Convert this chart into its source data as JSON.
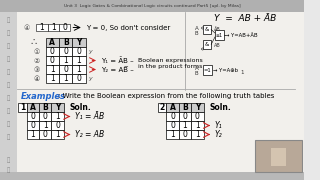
{
  "bg_color": "#e8e8e8",
  "content_bg": "#f5f4f0",
  "left_sidebar_color": "#d8d8d8",
  "top_bar_color": "#c8c8c8",
  "title_color": "#2266cc",
  "top_eq": "Y  =  AB + ĀB",
  "row4_vals": [
    "1",
    "1",
    "0"
  ],
  "row4_arrow_text": "Y = 0, So don't consider",
  "table_headers": [
    "A",
    "B",
    "Y"
  ],
  "table_rows": [
    [
      "0",
      "0",
      "0"
    ],
    [
      "0",
      "1",
      "1"
    ],
    [
      "1",
      "0",
      "1"
    ],
    [
      "1",
      "1",
      "0"
    ]
  ],
  "row_labels_top": [
    "①",
    "②",
    "③",
    "④"
  ],
  "y1_label": "Y₁ = ĀB –",
  "y2_label": "Y₂ = AB̅ –",
  "boolean_note1": "Boolean expressions",
  "boolean_note2": "in the product forms",
  "examples_label": "Examples",
  "examples_rest": ": Write the Boolean expression from the following truth tables",
  "bl_number": "1",
  "bl_headers": [
    "A",
    "B",
    "Y"
  ],
  "bl_rows": [
    [
      "0",
      "0",
      "1"
    ],
    [
      "0",
      "1",
      "0"
    ],
    [
      "1",
      "0",
      "1"
    ]
  ],
  "bl_soln": "Soln.",
  "bl_y1": "Y₁ = ĀB",
  "bl_y2": "Y₂ = AB",
  "br_number": "2",
  "br_headers": [
    "A",
    "B",
    "Y"
  ],
  "br_rows": [
    [
      "0",
      "0",
      "0"
    ],
    [
      "0",
      "1",
      "1"
    ],
    [
      "1",
      "0",
      "1"
    ]
  ],
  "br_soln": "Soln.",
  "br_y1": "Y₁",
  "br_y2": "Y₂",
  "webcam_color": "#b8a898"
}
